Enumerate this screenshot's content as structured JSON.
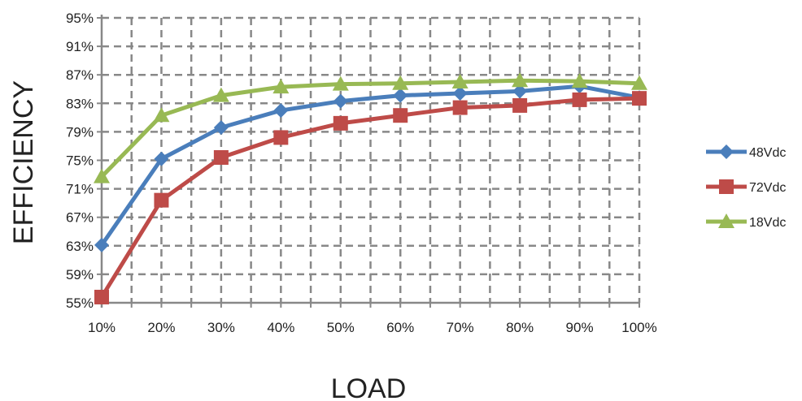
{
  "chart_data": {
    "type": "line",
    "title": "",
    "xlabel": "LOAD",
    "ylabel": "EFFICIENCY",
    "categories": [
      "10%",
      "20%",
      "30%",
      "40%",
      "50%",
      "60%",
      "70%",
      "80%",
      "90%",
      "100%"
    ],
    "x": [
      10,
      20,
      30,
      40,
      50,
      60,
      70,
      80,
      90,
      100
    ],
    "yticks": [
      "55%",
      "59%",
      "63%",
      "67%",
      "71%",
      "75%",
      "79%",
      "83%",
      "87%",
      "91%",
      "95%"
    ],
    "ylim": [
      55,
      95
    ],
    "grid": true,
    "legend_position": "right",
    "series": [
      {
        "name": "48Vdc",
        "color": "#4a7ebb",
        "marker": "diamond",
        "values": [
          63.1,
          75.2,
          79.6,
          82.0,
          83.3,
          84.1,
          84.4,
          84.7,
          85.4,
          83.8
        ]
      },
      {
        "name": "72Vdc",
        "color": "#be4b48",
        "marker": "square",
        "values": [
          55.8,
          69.4,
          75.4,
          78.2,
          80.2,
          81.3,
          82.4,
          82.7,
          83.5,
          83.7
        ]
      },
      {
        "name": "18Vdc",
        "color": "#98b954",
        "marker": "triangle",
        "values": [
          72.7,
          81.3,
          84.1,
          85.3,
          85.7,
          85.8,
          86.0,
          86.2,
          86.1,
          85.8
        ]
      }
    ]
  }
}
